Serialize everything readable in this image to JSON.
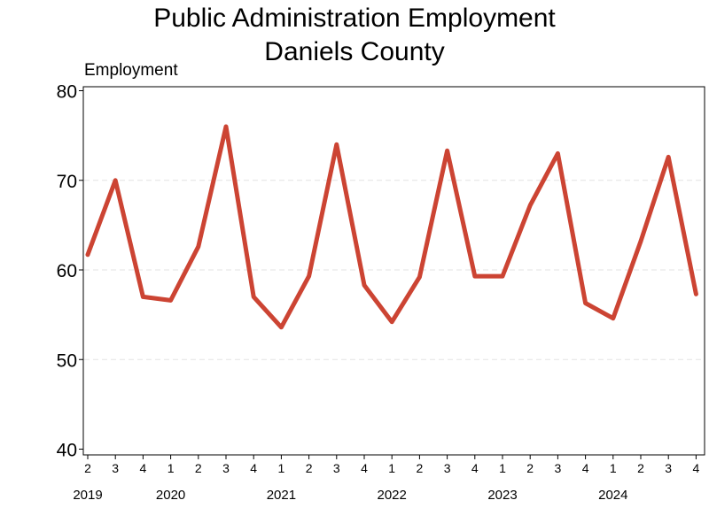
{
  "chart_data": {
    "type": "line",
    "title_lines": [
      "Public Administration Employment",
      "Daniels County"
    ],
    "ylabel": "Employment",
    "xlabel": "",
    "ylim": [
      40,
      80
    ],
    "yticks": [
      40,
      50,
      60,
      70,
      80
    ],
    "grid": "horizontal-dashed",
    "legend": "none",
    "series_color": "#cc4433",
    "x_quarter_labels": [
      "2",
      "3",
      "4",
      "1",
      "2",
      "3",
      "4",
      "1",
      "2",
      "3",
      "4",
      "1",
      "2",
      "3",
      "4",
      "1",
      "2",
      "3",
      "4",
      "1",
      "2",
      "3",
      "4"
    ],
    "year_labels": [
      {
        "label": "2019",
        "index": 0
      },
      {
        "label": "2020",
        "index": 3
      },
      {
        "label": "2021",
        "index": 7
      },
      {
        "label": "2022",
        "index": 11
      },
      {
        "label": "2023",
        "index": 15
      },
      {
        "label": "2024",
        "index": 19
      }
    ],
    "series": [
      {
        "values": [
          61.7,
          70.0,
          57.0,
          56.6,
          62.6,
          76.0,
          57.0,
          53.6,
          59.3,
          74.0,
          58.3,
          54.2,
          59.2,
          73.3,
          59.3,
          59.3,
          67.2,
          73.0,
          56.3,
          54.6,
          63.2,
          72.6,
          57.3
        ]
      }
    ]
  }
}
